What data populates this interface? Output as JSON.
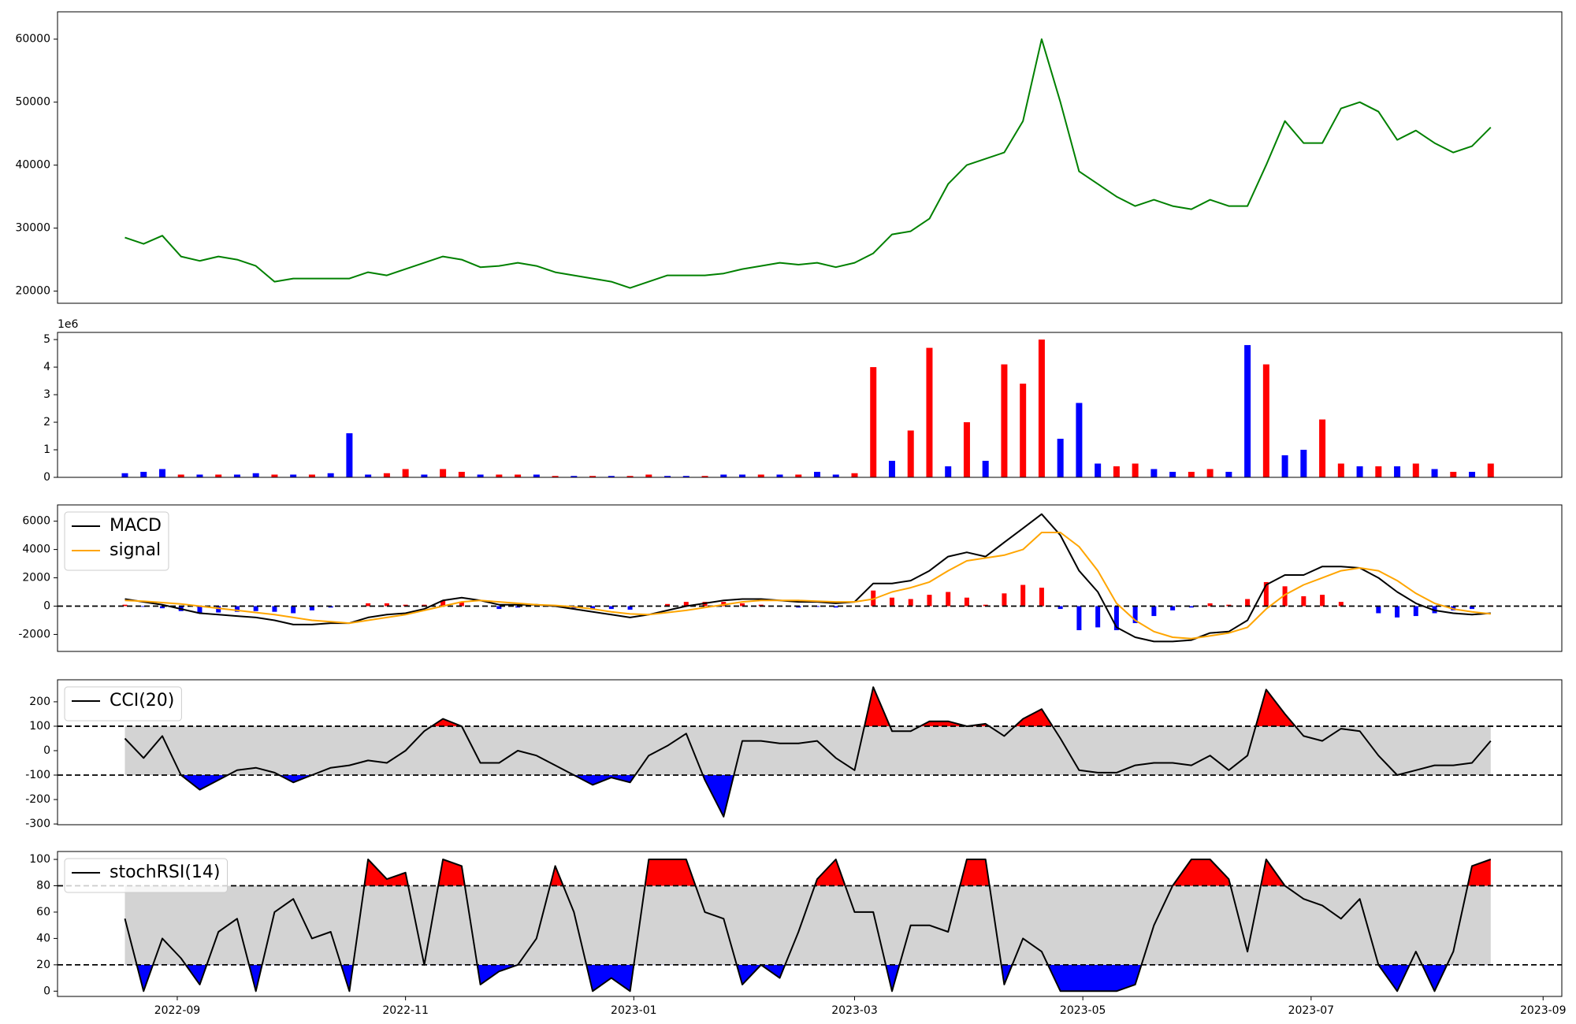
{
  "chart_data": [
    {
      "type": "line",
      "x": [
        19222,
        19227,
        19232,
        19237,
        19242,
        19247,
        19252,
        19257,
        19262,
        19267,
        19272,
        19277,
        19282,
        19287,
        19292,
        19297,
        19302,
        19307,
        19312,
        19317,
        19322,
        19327,
        19332,
        19337,
        19342,
        19347,
        19352,
        19357,
        19362,
        19367,
        19372,
        19377,
        19382,
        19387,
        19392,
        19397,
        19402,
        19407,
        19412,
        19417,
        19422,
        19427,
        19432,
        19437,
        19442,
        19447,
        19452,
        19457,
        19462,
        19467,
        19472,
        19477,
        19482,
        19487,
        19492,
        19497,
        19502,
        19507,
        19512,
        19517,
        19522,
        19527,
        19532,
        19537,
        19542,
        19547,
        19552,
        19557,
        19562,
        19567,
        19572,
        19577,
        19582,
        19587
      ],
      "series": [
        {
          "color": "green",
          "values": [
            28500,
            27500,
            28800,
            25500,
            24800,
            25500,
            25000,
            24000,
            21500,
            22000,
            22000,
            22000,
            22000,
            23000,
            22500,
            23500,
            24500,
            25500,
            25000,
            23800,
            24000,
            24500,
            24000,
            23000,
            22500,
            22000,
            21500,
            20500,
            21500,
            22500,
            22500,
            22500,
            22800,
            23500,
            24000,
            24500,
            24200,
            24500,
            23800,
            24500,
            26000,
            29000,
            29500,
            31500,
            37000,
            40000,
            41000,
            42000,
            47000,
            60000,
            50000,
            39000,
            37000,
            35000,
            33500,
            34500,
            33500,
            33000,
            34500,
            33500,
            33500,
            40000,
            47000,
            43500,
            43500,
            49000,
            50000,
            48500,
            44000,
            45500,
            43500,
            42000,
            43000,
            46000
          ]
        }
      ],
      "xlim": [
        19204,
        19606
      ],
      "ylim": [
        18070,
        64340
      ],
      "yticks": [
        20000,
        30000,
        40000,
        50000,
        60000
      ]
    },
    {
      "type": "bar",
      "x": [
        19222,
        19227,
        19232,
        19237,
        19242,
        19247,
        19252,
        19257,
        19262,
        19267,
        19272,
        19277,
        19282,
        19287,
        19292,
        19297,
        19302,
        19307,
        19312,
        19317,
        19322,
        19327,
        19332,
        19337,
        19342,
        19347,
        19352,
        19357,
        19362,
        19367,
        19372,
        19377,
        19382,
        19387,
        19392,
        19397,
        19402,
        19407,
        19412,
        19417,
        19422,
        19427,
        19432,
        19437,
        19442,
        19447,
        19452,
        19457,
        19462,
        19467,
        19472,
        19477,
        19482,
        19487,
        19492,
        19497,
        19502,
        19507,
        19512,
        19517,
        19522,
        19527,
        19532,
        19537,
        19542,
        19547,
        19552,
        19557,
        19562,
        19567,
        19572,
        19577,
        19582,
        19587
      ],
      "values": [
        0.15,
        0.2,
        0.3,
        0.1,
        0.1,
        0.1,
        0.1,
        0.15,
        0.1,
        0.1,
        0.1,
        0.15,
        1.6,
        0.1,
        0.15,
        0.3,
        0.1,
        0.3,
        0.2,
        0.1,
        0.1,
        0.1,
        0.1,
        0.05,
        0.05,
        0.05,
        0.05,
        0.05,
        0.1,
        0.05,
        0.05,
        0.05,
        0.1,
        0.1,
        0.1,
        0.1,
        0.1,
        0.2,
        0.1,
        0.15,
        4.0,
        0.6,
        1.7,
        4.7,
        0.4,
        2.0,
        0.6,
        4.1,
        3.4,
        5.0,
        1.4,
        2.7,
        0.5,
        0.4,
        0.5,
        0.3,
        0.2,
        0.2,
        0.3,
        0.2,
        4.8,
        4.1,
        0.8,
        1.0,
        2.1,
        0.5,
        0.4,
        0.4,
        0.4,
        0.5,
        0.3,
        0.2,
        0.2,
        0.5
      ],
      "colors": [
        "blue",
        "blue",
        "blue",
        "red",
        "blue",
        "red",
        "blue",
        "blue",
        "red",
        "blue",
        "red",
        "blue",
        "blue",
        "blue",
        "red",
        "red",
        "blue",
        "red",
        "red",
        "blue",
        "red",
        "red",
        "blue",
        "red",
        "blue",
        "red",
        "blue",
        "red",
        "red",
        "blue",
        "blue",
        "red",
        "blue",
        "blue",
        "red",
        "blue",
        "red",
        "blue",
        "blue",
        "red",
        "red",
        "blue",
        "red",
        "red",
        "blue",
        "red",
        "blue",
        "red",
        "red",
        "red",
        "blue",
        "blue",
        "blue",
        "red",
        "red",
        "blue",
        "blue",
        "red",
        "red",
        "blue",
        "blue",
        "red",
        "blue",
        "blue",
        "red",
        "red",
        "blue",
        "red",
        "blue",
        "red",
        "blue",
        "red",
        "blue",
        "red"
      ],
      "xlim": [
        19204,
        19606
      ],
      "ylim": [
        0,
        5.26
      ],
      "yticks": [
        0,
        1,
        2,
        3,
        4,
        5
      ],
      "y_offset_label": "1e6"
    },
    {
      "type": "line",
      "x": [
        19222,
        19227,
        19232,
        19237,
        19242,
        19247,
        19252,
        19257,
        19262,
        19267,
        19272,
        19277,
        19282,
        19287,
        19292,
        19297,
        19302,
        19307,
        19312,
        19317,
        19322,
        19327,
        19332,
        19337,
        19342,
        19347,
        19352,
        19357,
        19362,
        19367,
        19372,
        19377,
        19382,
        19387,
        19392,
        19397,
        19402,
        19407,
        19412,
        19417,
        19422,
        19427,
        19432,
        19437,
        19442,
        19447,
        19452,
        19457,
        19462,
        19467,
        19472,
        19477,
        19482,
        19487,
        19492,
        19497,
        19502,
        19507,
        19512,
        19517,
        19522,
        19527,
        19532,
        19537,
        19542,
        19547,
        19552,
        19557,
        19562,
        19567,
        19572,
        19577,
        19582,
        19587
      ],
      "series": [
        {
          "name": "MACD",
          "color": "black",
          "values": [
            500,
            300,
            100,
            -200,
            -500,
            -600,
            -700,
            -800,
            -1000,
            -1300,
            -1300,
            -1200,
            -1200,
            -800,
            -600,
            -500,
            -200,
            400,
            600,
            400,
            100,
            100,
            100,
            0,
            -200,
            -400,
            -600,
            -800,
            -600,
            -300,
            0,
            200,
            400,
            500,
            500,
            400,
            300,
            300,
            200,
            300,
            1600,
            1600,
            1800,
            2500,
            3500,
            3800,
            3500,
            4500,
            5500,
            6500,
            5000,
            2500,
            1000,
            -1500,
            -2200,
            -2500,
            -2500,
            -2400,
            -1900,
            -1800,
            -1000,
            1500,
            2200,
            2200,
            2800,
            2800,
            2700,
            2000,
            1000,
            200,
            -300,
            -500,
            -600,
            -500
          ]
        },
        {
          "name": "signal",
          "color": "orange",
          "values": [
            400,
            350,
            250,
            150,
            0,
            -150,
            -300,
            -450,
            -600,
            -800,
            -1000,
            -1100,
            -1200,
            -1000,
            -800,
            -600,
            -300,
            0,
            300,
            400,
            300,
            200,
            100,
            50,
            -50,
            -200,
            -400,
            -550,
            -600,
            -450,
            -300,
            -100,
            100,
            300,
            400,
            400,
            400,
            350,
            300,
            300,
            500,
            1000,
            1300,
            1700,
            2500,
            3200,
            3400,
            3600,
            4000,
            5200,
            5200,
            4200,
            2500,
            200,
            -1000,
            -1800,
            -2200,
            -2300,
            -2100,
            -1900,
            -1500,
            -200,
            800,
            1500,
            2000,
            2500,
            2700,
            2500,
            1800,
            900,
            200,
            -200,
            -400,
            -550
          ]
        },
        {
          "type": "bar",
          "pos_color": "red",
          "neg_color": "blue",
          "values": [
            100,
            -50,
            -150,
            -350,
            -500,
            -450,
            -400,
            -350,
            -400,
            -500,
            -300,
            -100,
            0,
            200,
            200,
            100,
            100,
            400,
            300,
            0,
            -200,
            -100,
            0,
            -50,
            -150,
            -200,
            -200,
            -250,
            0,
            150,
            300,
            300,
            300,
            200,
            100,
            0,
            -100,
            -50,
            -100,
            0,
            1100,
            600,
            500,
            800,
            1000,
            600,
            100,
            900,
            1500,
            1300,
            -200,
            -1700,
            -1500,
            -1700,
            -1200,
            -700,
            -300,
            -100,
            200,
            100,
            500,
            1700,
            1400,
            700,
            800,
            300,
            0,
            -500,
            -800,
            -700,
            -500,
            -300,
            -200,
            50
          ]
        }
      ],
      "hlines": [
        0
      ],
      "legend": "upper left",
      "xlim": [
        19204,
        19606
      ],
      "ylim": [
        -3200,
        7150
      ],
      "yticks": [
        -2000,
        0,
        2000,
        4000,
        6000
      ]
    },
    {
      "type": "oscillator",
      "x": [
        19222,
        19227,
        19232,
        19237,
        19242,
        19247,
        19252,
        19257,
        19262,
        19267,
        19272,
        19277,
        19282,
        19287,
        19292,
        19297,
        19302,
        19307,
        19312,
        19317,
        19322,
        19327,
        19332,
        19337,
        19342,
        19347,
        19352,
        19357,
        19362,
        19367,
        19372,
        19377,
        19382,
        19387,
        19392,
        19397,
        19402,
        19407,
        19412,
        19417,
        19422,
        19427,
        19432,
        19437,
        19442,
        19447,
        19452,
        19457,
        19462,
        19467,
        19472,
        19477,
        19482,
        19487,
        19492,
        19497,
        19502,
        19507,
        19512,
        19517,
        19522,
        19527,
        19532,
        19537,
        19542,
        19547,
        19552,
        19557,
        19562,
        19567,
        19572,
        19577,
        19582,
        19587
      ],
      "series": [
        {
          "name": "CCI(20)",
          "color": "black",
          "values": [
            50,
            -30,
            60,
            -100,
            -160,
            -120,
            -80,
            -70,
            -90,
            -130,
            -100,
            -70,
            -60,
            -40,
            -50,
            0,
            80,
            130,
            100,
            -50,
            -50,
            0,
            -20,
            -60,
            -100,
            -140,
            -110,
            -130,
            -20,
            20,
            70,
            -120,
            -270,
            40,
            40,
            30,
            30,
            40,
            -30,
            -80,
            260,
            80,
            80,
            120,
            120,
            100,
            110,
            60,
            130,
            170,
            50,
            -80,
            -90,
            -90,
            -60,
            -50,
            -50,
            -60,
            -20,
            -80,
            -20,
            250,
            150,
            60,
            40,
            90,
            80,
            -20,
            -100,
            -80,
            -60,
            -60,
            -50,
            40
          ]
        }
      ],
      "upper": 100,
      "lower": -100,
      "band_color": "lightgray",
      "upper_color": "red",
      "lower_color": "blue",
      "legend": "upper left",
      "xlim": [
        19204,
        19606
      ],
      "ylim": [
        -303,
        290
      ],
      "yticks": [
        -300,
        -200,
        -100,
        0,
        100,
        200
      ]
    },
    {
      "type": "oscillator",
      "x": [
        19222,
        19227,
        19232,
        19237,
        19242,
        19247,
        19252,
        19257,
        19262,
        19267,
        19272,
        19277,
        19282,
        19287,
        19292,
        19297,
        19302,
        19307,
        19312,
        19317,
        19322,
        19327,
        19332,
        19337,
        19342,
        19347,
        19352,
        19357,
        19362,
        19367,
        19372,
        19377,
        19382,
        19387,
        19392,
        19397,
        19402,
        19407,
        19412,
        19417,
        19422,
        19427,
        19432,
        19437,
        19442,
        19447,
        19452,
        19457,
        19462,
        19467,
        19472,
        19477,
        19482,
        19487,
        19492,
        19497,
        19502,
        19507,
        19512,
        19517,
        19522,
        19527,
        19532,
        19537,
        19542,
        19547,
        19552,
        19557,
        19562,
        19567,
        19572,
        19577,
        19582,
        19587
      ],
      "series": [
        {
          "name": "stochRSI(14)",
          "color": "black",
          "values": [
            55,
            0,
            40,
            25,
            5,
            45,
            55,
            0,
            60,
            70,
            40,
            45,
            0,
            100,
            85,
            90,
            20,
            100,
            95,
            5,
            15,
            20,
            40,
            95,
            60,
            0,
            10,
            0,
            100,
            100,
            100,
            60,
            55,
            5,
            20,
            10,
            45,
            85,
            100,
            60,
            60,
            0,
            50,
            50,
            45,
            100,
            100,
            5,
            40,
            30,
            0,
            0,
            0,
            0,
            5,
            50,
            80,
            100,
            100,
            85,
            30,
            100,
            80,
            70,
            65,
            55,
            70,
            20,
            0,
            30,
            0,
            30,
            95,
            100
          ]
        }
      ],
      "upper": 80,
      "lower": 20,
      "band_color": "lightgray",
      "upper_color": "red",
      "lower_color": "blue",
      "legend": "upper left",
      "xlim": [
        19204,
        19606
      ],
      "ylim": [
        -4,
        106
      ],
      "yticks": [
        0,
        20,
        40,
        60,
        80,
        100
      ],
      "xticks": [
        {
          "value": 19236,
          "label": "2022-09"
        },
        {
          "value": 19297,
          "label": "2022-11"
        },
        {
          "value": 19358,
          "label": "2023-01"
        },
        {
          "value": 19417,
          "label": "2023-03"
        },
        {
          "value": 19478,
          "label": "2023-05"
        },
        {
          "value": 19539,
          "label": "2023-07"
        },
        {
          "value": 19601,
          "label": "2023-09"
        }
      ]
    }
  ]
}
